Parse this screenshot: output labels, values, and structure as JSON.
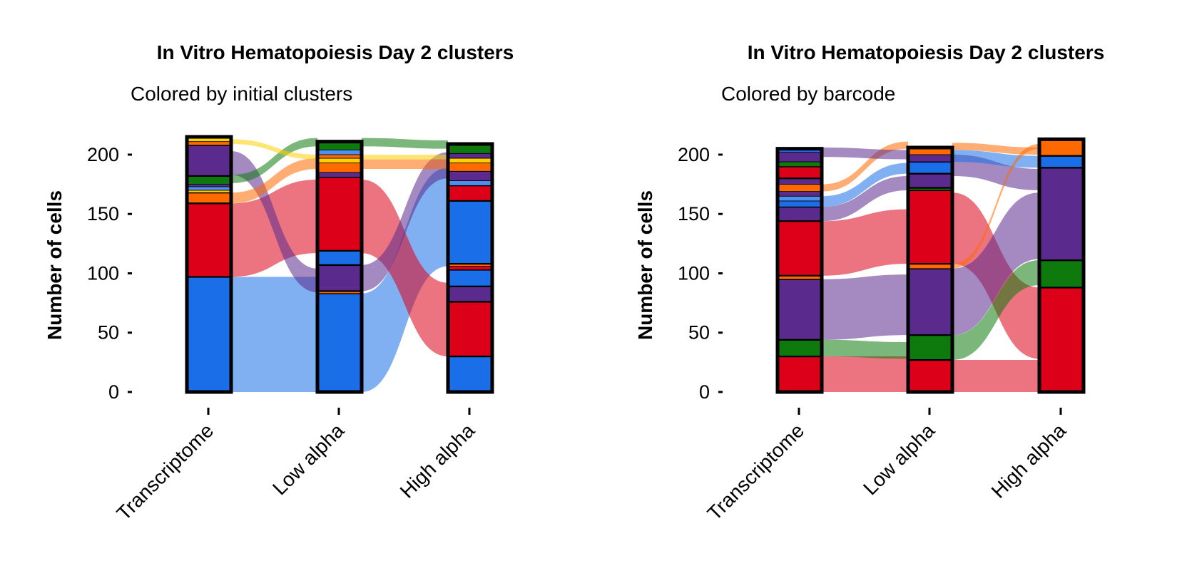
{
  "colors": {
    "blue": "#1a6fe8",
    "red": "#dc0018",
    "purple": "#5a2a8c",
    "green": "#0e7a0e",
    "orange": "#ff6a00",
    "yellow": "#ffd000",
    "sky": "#4f8ff0",
    "outline": "#000000"
  },
  "chart_data": [
    {
      "type": "alluvial",
      "title": "In Vitro Hematopoiesis Day 2 clusters",
      "subtitle": "Colored by initial clusters",
      "ylabel": "Number of cells",
      "ylim": [
        0,
        215
      ],
      "yticks": [
        0,
        50,
        100,
        150,
        200
      ],
      "categories": [
        "Transcriptome",
        "Low alpha",
        "High alpha"
      ],
      "axes": [
        {
          "name": "Transcriptome",
          "strata": [
            {
              "color": "blue",
              "size": 97
            },
            {
              "color": "red",
              "size": 62
            },
            {
              "color": "orange",
              "size": 9
            },
            {
              "color": "yellow",
              "size": 2
            },
            {
              "color": "sky",
              "size": 3
            },
            {
              "color": "purple",
              "size": 2
            },
            {
              "color": "green",
              "size": 7
            },
            {
              "color": "purple",
              "size": 26
            },
            {
              "color": "orange",
              "size": 3
            },
            {
              "color": "yellow",
              "size": 4
            }
          ]
        },
        {
          "name": "Low alpha",
          "strata": [
            {
              "color": "blue",
              "size": 83
            },
            {
              "color": "orange",
              "size": 2
            },
            {
              "color": "purple",
              "size": 22
            },
            {
              "color": "blue",
              "size": 12
            },
            {
              "color": "red",
              "size": 62
            },
            {
              "color": "purple",
              "size": 4
            },
            {
              "color": "orange",
              "size": 8
            },
            {
              "color": "yellow",
              "size": 4
            },
            {
              "color": "orange",
              "size": 3
            },
            {
              "color": "sky",
              "size": 4
            },
            {
              "color": "green",
              "size": 7
            }
          ]
        },
        {
          "name": "High alpha",
          "strata": [
            {
              "color": "blue",
              "size": 30
            },
            {
              "color": "red",
              "size": 46
            },
            {
              "color": "purple",
              "size": 13
            },
            {
              "color": "blue",
              "size": 14
            },
            {
              "color": "red",
              "size": 3
            },
            {
              "color": "orange",
              "size": 2
            },
            {
              "color": "blue",
              "size": 53
            },
            {
              "color": "red",
              "size": 13
            },
            {
              "color": "sky",
              "size": 4
            },
            {
              "color": "purple",
              "size": 8
            },
            {
              "color": "orange",
              "size": 7
            },
            {
              "color": "yellow",
              "size": 4
            },
            {
              "color": "purple",
              "size": 4
            },
            {
              "color": "green",
              "size": 8
            }
          ]
        }
      ],
      "flows": [
        {
          "from": "Transcriptome",
          "to": "Low alpha",
          "color": "blue",
          "value": 97,
          "from_start": 0,
          "to_start": 0
        },
        {
          "from": "Transcriptome",
          "to": "Low alpha",
          "color": "red",
          "value": 62,
          "from_start": 97,
          "to_start": 117
        },
        {
          "from": "Transcriptome",
          "to": "Low alpha",
          "color": "purple",
          "value": 20,
          "from_start": 183,
          "to_start": 84
        },
        {
          "from": "Transcriptome",
          "to": "Low alpha",
          "color": "green",
          "value": 7,
          "from_start": 176,
          "to_start": 207
        },
        {
          "from": "Transcriptome",
          "to": "Low alpha",
          "color": "orange",
          "value": 9,
          "from_start": 159,
          "to_start": 188
        },
        {
          "from": "Transcriptome",
          "to": "Low alpha",
          "color": "yellow",
          "value": 4,
          "from_start": 209,
          "to_start": 196
        },
        {
          "from": "Low alpha",
          "to": "High alpha",
          "color": "blue",
          "value": 83,
          "from_start": 0,
          "to_start": 106
        },
        {
          "from": "Low alpha",
          "to": "High alpha",
          "color": "red",
          "value": 62,
          "from_start": 117,
          "to_start": 30
        },
        {
          "from": "Low alpha",
          "to": "High alpha",
          "color": "purple",
          "value": 22,
          "from_start": 85,
          "to_start": 180
        },
        {
          "from": "Low alpha",
          "to": "High alpha",
          "color": "green",
          "value": 7,
          "from_start": 207,
          "to_start": 205
        },
        {
          "from": "Low alpha",
          "to": "High alpha",
          "color": "orange",
          "value": 8,
          "from_start": 188,
          "to_start": 188
        },
        {
          "from": "Low alpha",
          "to": "High alpha",
          "color": "yellow",
          "value": 4,
          "from_start": 196,
          "to_start": 196
        }
      ]
    },
    {
      "type": "alluvial",
      "title": "In Vitro Hematopoiesis Day 2 clusters",
      "subtitle": "Colored by barcode",
      "ylabel": "Number of cells",
      "ylim": [
        0,
        215
      ],
      "yticks": [
        0,
        50,
        100,
        150,
        200
      ],
      "categories": [
        "Transcriptome",
        "Low alpha",
        "High alpha"
      ],
      "axes": [
        {
          "name": "Transcriptome",
          "strata": [
            {
              "color": "red",
              "size": 30
            },
            {
              "color": "green",
              "size": 14
            },
            {
              "color": "purple",
              "size": 51
            },
            {
              "color": "orange",
              "size": 3
            },
            {
              "color": "red",
              "size": 46
            },
            {
              "color": "purple",
              "size": 12
            },
            {
              "color": "blue",
              "size": 5
            },
            {
              "color": "sky",
              "size": 4
            },
            {
              "color": "purple",
              "size": 4
            },
            {
              "color": "orange",
              "size": 6
            },
            {
              "color": "purple",
              "size": 5
            },
            {
              "color": "red",
              "size": 10
            },
            {
              "color": "green",
              "size": 4
            },
            {
              "color": "purple",
              "size": 8
            },
            {
              "color": "blue",
              "size": 3
            }
          ]
        },
        {
          "name": "Low alpha",
          "strata": [
            {
              "color": "red",
              "size": 27
            },
            {
              "color": "green",
              "size": 21
            },
            {
              "color": "purple",
              "size": 56
            },
            {
              "color": "orange",
              "size": 4
            },
            {
              "color": "red",
              "size": 62
            },
            {
              "color": "green",
              "size": 2
            },
            {
              "color": "purple",
              "size": 12
            },
            {
              "color": "blue",
              "size": 10
            },
            {
              "color": "purple",
              "size": 6
            },
            {
              "color": "orange",
              "size": 6
            }
          ]
        },
        {
          "name": "High alpha",
          "strata": [
            {
              "color": "red",
              "size": 88
            },
            {
              "color": "green",
              "size": 23
            },
            {
              "color": "purple",
              "size": 78
            },
            {
              "color": "blue",
              "size": 10
            },
            {
              "color": "orange",
              "size": 14
            }
          ]
        }
      ],
      "flows": [
        {
          "from": "Transcriptome",
          "to": "Low alpha",
          "color": "red",
          "value": 30,
          "from_start": 0,
          "to_start": 0
        },
        {
          "from": "Transcriptome",
          "to": "Low alpha",
          "color": "green",
          "value": 14,
          "from_start": 30,
          "to_start": 28
        },
        {
          "from": "Transcriptome",
          "to": "Low alpha",
          "color": "purple",
          "value": 51,
          "from_start": 44,
          "to_start": 48
        },
        {
          "from": "Transcriptome",
          "to": "Low alpha",
          "color": "red",
          "value": 46,
          "from_start": 98,
          "to_start": 108
        },
        {
          "from": "Transcriptome",
          "to": "Low alpha",
          "color": "purple",
          "value": 12,
          "from_start": 144,
          "to_start": 170
        },
        {
          "from": "Transcriptome",
          "to": "Low alpha",
          "color": "blue",
          "value": 9,
          "from_start": 156,
          "to_start": 184
        },
        {
          "from": "Transcriptome",
          "to": "Low alpha",
          "color": "orange",
          "value": 6,
          "from_start": 169,
          "to_start": 205
        },
        {
          "from": "Transcriptome",
          "to": "Low alpha",
          "color": "purple",
          "value": 8,
          "from_start": 198,
          "to_start": 196
        },
        {
          "from": "Low alpha",
          "to": "High alpha",
          "color": "red",
          "value": 27,
          "from_start": 0,
          "to_start": 0
        },
        {
          "from": "Low alpha",
          "to": "High alpha",
          "color": "red",
          "value": 60,
          "from_start": 108,
          "to_start": 28
        },
        {
          "from": "Low alpha",
          "to": "High alpha",
          "color": "green",
          "value": 21,
          "from_start": 27,
          "to_start": 90
        },
        {
          "from": "Low alpha",
          "to": "High alpha",
          "color": "purple",
          "value": 56,
          "from_start": 48,
          "to_start": 112
        },
        {
          "from": "Low alpha",
          "to": "High alpha",
          "color": "purple",
          "value": 18,
          "from_start": 182,
          "to_start": 170
        },
        {
          "from": "Low alpha",
          "to": "High alpha",
          "color": "blue",
          "value": 10,
          "from_start": 194,
          "to_start": 189
        },
        {
          "from": "Low alpha",
          "to": "High alpha",
          "color": "orange",
          "value": 6,
          "from_start": 204,
          "to_start": 200
        },
        {
          "from": "Low alpha",
          "to": "High alpha",
          "color": "orange",
          "value": 4,
          "from_start": 104,
          "to_start": 205
        }
      ]
    }
  ]
}
